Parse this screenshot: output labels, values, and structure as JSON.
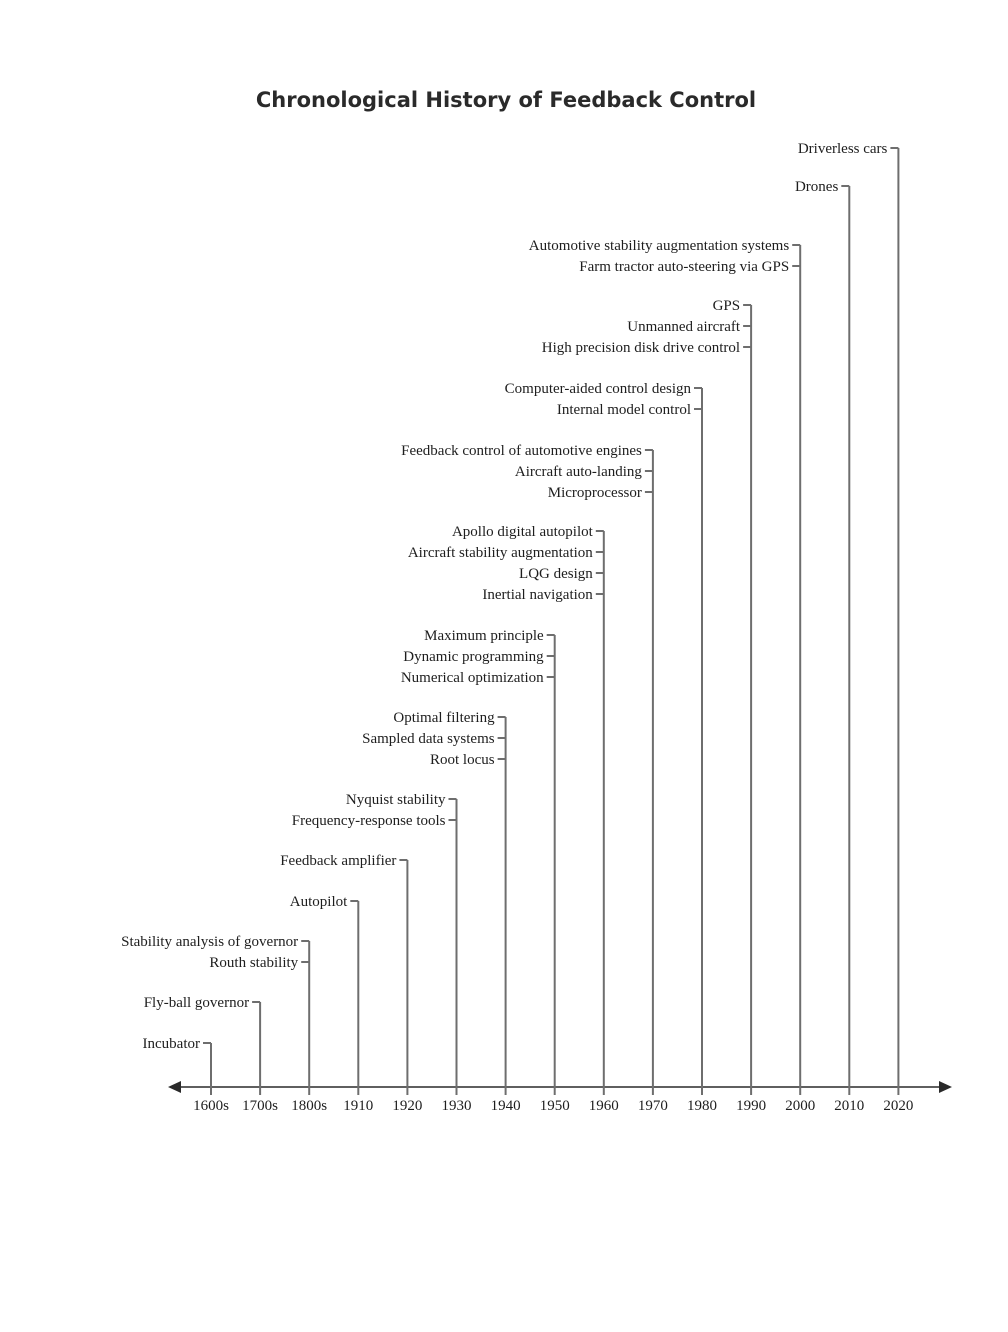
{
  "title": "Chronological History of Feedback Control",
  "colors": {
    "text": "#1e1e1e",
    "stem": "#6e6e6e",
    "axis": "#2a2a2a"
  },
  "axis": {
    "direction": "bidirectional-arrow"
  },
  "periods": [
    {
      "label": "1600s",
      "events": [
        "Incubator"
      ]
    },
    {
      "label": "1700s",
      "events": [
        "Fly-ball governor"
      ]
    },
    {
      "label": "1800s",
      "events": [
        "Stability analysis of governor",
        "Routh stability"
      ]
    },
    {
      "label": "1910",
      "events": [
        "Autopilot"
      ]
    },
    {
      "label": "1920",
      "events": [
        "Feedback amplifier"
      ]
    },
    {
      "label": "1930",
      "events": [
        "Nyquist stability",
        "Frequency-response tools"
      ]
    },
    {
      "label": "1940",
      "events": [
        "Optimal filtering",
        "Sampled data systems",
        "Root locus"
      ]
    },
    {
      "label": "1950",
      "events": [
        "Maximum principle",
        "Dynamic programming",
        "Numerical optimization"
      ]
    },
    {
      "label": "1960",
      "events": [
        "Apollo digital autopilot",
        "Aircraft stability augmentation",
        "LQG design",
        "Inertial navigation"
      ]
    },
    {
      "label": "1970",
      "events": [
        "Feedback control of automotive engines",
        "Aircraft auto-landing",
        "Microprocessor"
      ]
    },
    {
      "label": "1980",
      "events": [
        "Computer-aided control design",
        "Internal model control"
      ]
    },
    {
      "label": "1990",
      "events": [
        "GPS",
        "Unmanned aircraft",
        "High precision disk drive control"
      ]
    },
    {
      "label": "2000",
      "events": [
        "Automotive stability augmentation systems",
        "Farm tractor auto-steering via GPS"
      ]
    },
    {
      "label": "2010",
      "events": [
        "Drones"
      ]
    },
    {
      "label": "2020",
      "events": [
        "Driverless cars"
      ]
    }
  ]
}
